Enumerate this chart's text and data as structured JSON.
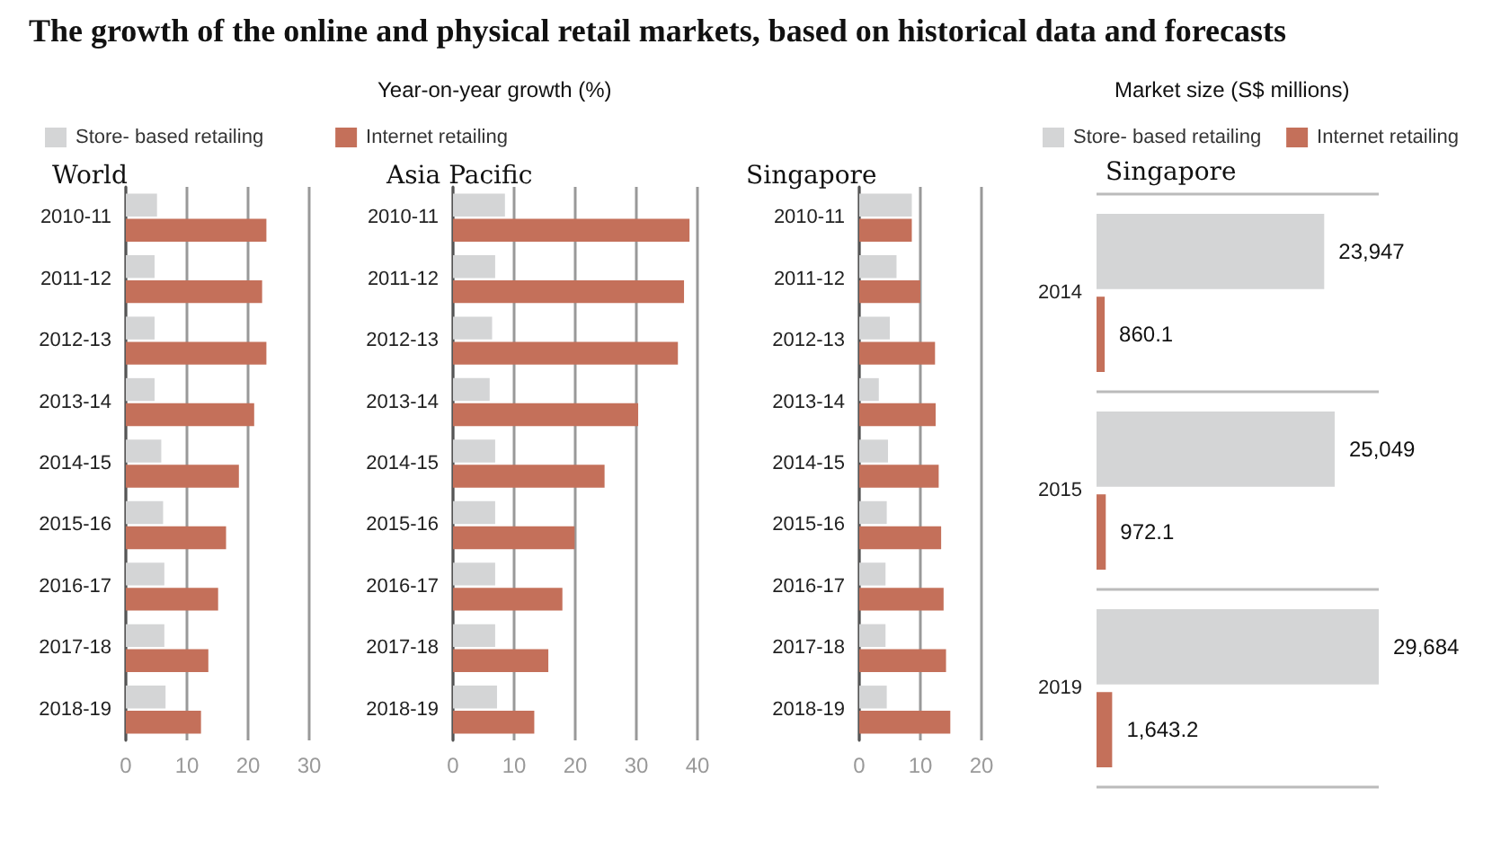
{
  "chart_data": [
    {
      "type": "bar",
      "orientation": "horizontal",
      "title": "World",
      "annotations": [
        "The growth of the online and physical retail markets, based on historical data and forecasts",
        "Year-on-year growth (%)"
      ],
      "categories": [
        "2010-11",
        "2011-12",
        "2012-13",
        "2013-14",
        "2014-15",
        "2015-16",
        "2016-17",
        "2017-18",
        "2018-19"
      ],
      "series": [
        {
          "name": "Store- based retailing",
          "color": "#d4d5d6",
          "values": [
            5.1,
            4.7,
            4.7,
            4.7,
            5.8,
            6.1,
            6.3,
            6.3,
            6.5
          ]
        },
        {
          "name": "Internet retailing",
          "color": "#c4705a",
          "values": [
            23.0,
            22.3,
            23.0,
            21.0,
            18.5,
            16.4,
            15.1,
            13.5,
            12.3
          ]
        }
      ],
      "xlim": [
        0,
        30
      ],
      "xticks": [
        0,
        10,
        20,
        30
      ],
      "grid": "x",
      "legend": "top"
    },
    {
      "type": "bar",
      "orientation": "horizontal",
      "title": "Asia Pacific",
      "categories": [
        "2010-11",
        "2011-12",
        "2012-13",
        "2013-14",
        "2014-15",
        "2015-16",
        "2016-17",
        "2017-18",
        "2018-19"
      ],
      "series": [
        {
          "color": "#d4d5d6",
          "values": [
            8.5,
            6.9,
            6.4,
            6.0,
            6.9,
            6.9,
            6.9,
            6.9,
            7.2
          ]
        },
        {
          "color": "#c4705a",
          "values": [
            38.7,
            37.8,
            36.8,
            30.3,
            24.8,
            19.9,
            17.9,
            15.6,
            13.3
          ]
        }
      ],
      "xlim": [
        0,
        40
      ],
      "xticks": [
        0,
        10,
        20,
        30,
        40
      ],
      "grid": "x"
    },
    {
      "type": "bar",
      "orientation": "horizontal",
      "title": "Singapore",
      "categories": [
        "2010-11",
        "2011-12",
        "2012-13",
        "2013-14",
        "2014-15",
        "2015-16",
        "2016-17",
        "2017-18",
        "2018-19"
      ],
      "series": [
        {
          "color": "#d4d5d6",
          "values": [
            8.6,
            6.1,
            5.0,
            3.2,
            4.7,
            4.5,
            4.3,
            4.3,
            4.5
          ]
        },
        {
          "color": "#c4705a",
          "values": [
            8.6,
            10.0,
            12.4,
            12.5,
            13.0,
            13.4,
            13.8,
            14.2,
            14.9
          ]
        }
      ],
      "xlim": [
        0,
        20
      ],
      "xticks": [
        0,
        10,
        20
      ],
      "grid": "x"
    },
    {
      "type": "bar",
      "orientation": "horizontal",
      "title": "Singapore",
      "annotations": [
        "Market size (S$ millions)"
      ],
      "categories": [
        "2014",
        "2015",
        "2019"
      ],
      "series": [
        {
          "name": "Store- based retailing",
          "color": "#d4d5d6",
          "values": [
            23947,
            25049,
            29684
          ],
          "value_labels": [
            "23,947",
            "25,049",
            "29,684"
          ]
        },
        {
          "name": "Internet retailing",
          "color": "#c4705a",
          "values": [
            860.1,
            972.1,
            1643.2
          ],
          "value_labels": [
            "860.1",
            "972.1",
            "1,643.2"
          ]
        }
      ],
      "grid": "y",
      "tick_labels": "y",
      "legend": "top"
    }
  ]
}
